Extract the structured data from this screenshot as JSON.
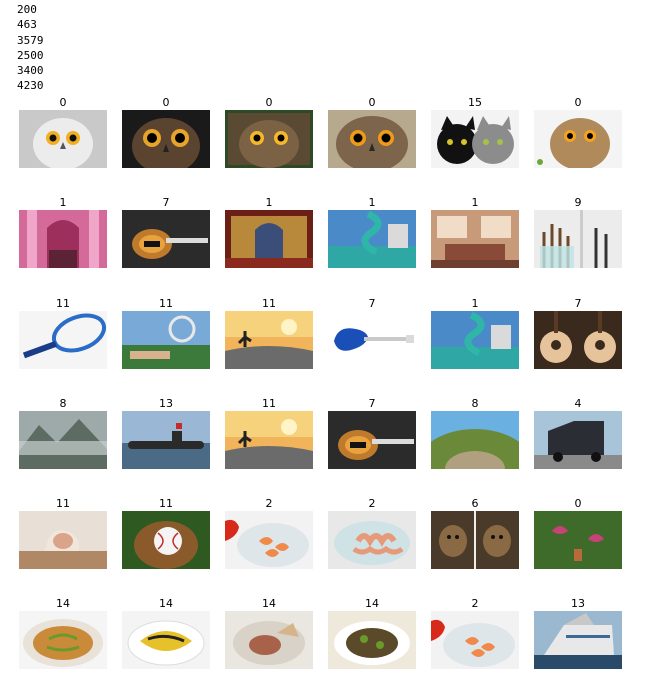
{
  "output_lines": [
    "200",
    "463",
    "3579",
    "2500",
    "3400",
    "4230"
  ],
  "grid": {
    "rows": [
      [
        {
          "label": "0",
          "image": "white-owl-icon"
        },
        {
          "label": "0",
          "image": "owl-face-icon"
        },
        {
          "label": "0",
          "image": "owl-framed-icon"
        },
        {
          "label": "0",
          "image": "owl-closeup-icon"
        },
        {
          "label": "15",
          "image": "two-cats-icon"
        },
        {
          "label": "0",
          "image": "owl-on-white-icon"
        }
      ],
      [
        {
          "label": "1",
          "image": "pink-church-interior-icon"
        },
        {
          "label": "7",
          "image": "bass-guitar-icon"
        },
        {
          "label": "1",
          "image": "ornate-altar-icon"
        },
        {
          "label": "1",
          "image": "waterslide-icon"
        },
        {
          "label": "1",
          "image": "living-room-icon"
        },
        {
          "label": "9",
          "image": "makeup-brushes-icon"
        }
      ],
      [
        {
          "label": "11",
          "image": "tennis-racket-icon"
        },
        {
          "label": "11",
          "image": "tennis-player-icon"
        },
        {
          "label": "11",
          "image": "skateboarder-sunset-icon"
        },
        {
          "label": "7",
          "image": "blue-electric-guitar-icon"
        },
        {
          "label": "1",
          "image": "waterslide-icon"
        },
        {
          "label": "7",
          "image": "acoustic-guitars-icon"
        }
      ],
      [
        {
          "label": "8",
          "image": "misty-mountain-icon"
        },
        {
          "label": "13",
          "image": "submarine-icon"
        },
        {
          "label": "11",
          "image": "skateboarder-sunset-icon"
        },
        {
          "label": "7",
          "image": "bass-guitar-icon"
        },
        {
          "label": "8",
          "image": "fisheye-landscape-icon"
        },
        {
          "label": "4",
          "image": "truck-icon"
        }
      ],
      [
        {
          "label": "11",
          "image": "yoga-pose-icon"
        },
        {
          "label": "11",
          "image": "baseball-glove-icon"
        },
        {
          "label": "2",
          "image": "shrimp-plate-icon"
        },
        {
          "label": "2",
          "image": "octopus-plate-icon"
        },
        {
          "label": "6",
          "image": "monkeys-icon"
        },
        {
          "label": "0",
          "image": "hummingbirds-icon"
        }
      ],
      [
        {
          "label": "14",
          "image": "noodle-dish-icon"
        },
        {
          "label": "14",
          "image": "pasta-dish-icon"
        },
        {
          "label": "14",
          "image": "dumpling-bowl-icon"
        },
        {
          "label": "14",
          "image": "stir-fry-plate-icon"
        },
        {
          "label": "2",
          "image": "shrimp-plate-icon"
        },
        {
          "label": "13",
          "image": "cruise-ship-icon"
        }
      ]
    ]
  }
}
